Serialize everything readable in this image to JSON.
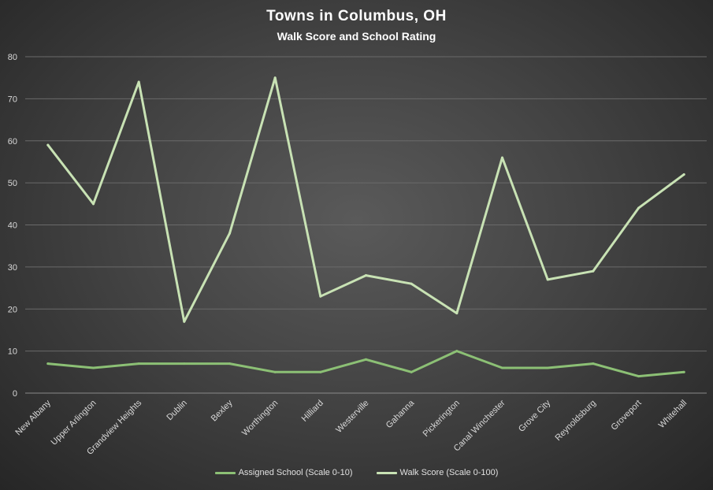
{
  "chart_data": {
    "type": "line",
    "title": "Towns  in Columbus,  OH",
    "subtitle": "Walk Score and School Rating",
    "xlabel": "",
    "ylabel": "",
    "ylim": [
      0,
      80
    ],
    "yticks": [
      0,
      10,
      20,
      30,
      40,
      50,
      60,
      70,
      80
    ],
    "grid": true,
    "legend_position": "bottom",
    "categories": [
      "New Albany",
      "Upper Arlington",
      "Grandview Heights",
      "Dublin",
      "Bexley",
      "Worthington",
      "Hilliard",
      "Westerville",
      "Gahanna",
      "Pickerington",
      "Canal Winchester",
      "Grove City",
      "Reynoldsburg",
      "Groveport",
      "Whitehall"
    ],
    "series": [
      {
        "name": "Assigned School (Scale 0-10)",
        "color": "#8cc075",
        "values": [
          7,
          6,
          7,
          7,
          7,
          5,
          5,
          8,
          5,
          10,
          6,
          6,
          7,
          4,
          5
        ]
      },
      {
        "name": "Walk Score (Scale 0-100)",
        "color": "#c8e2b4",
        "values": [
          59,
          45,
          74,
          17,
          38,
          75,
          23,
          28,
          26,
          19,
          56,
          27,
          29,
          44,
          52
        ]
      }
    ]
  }
}
